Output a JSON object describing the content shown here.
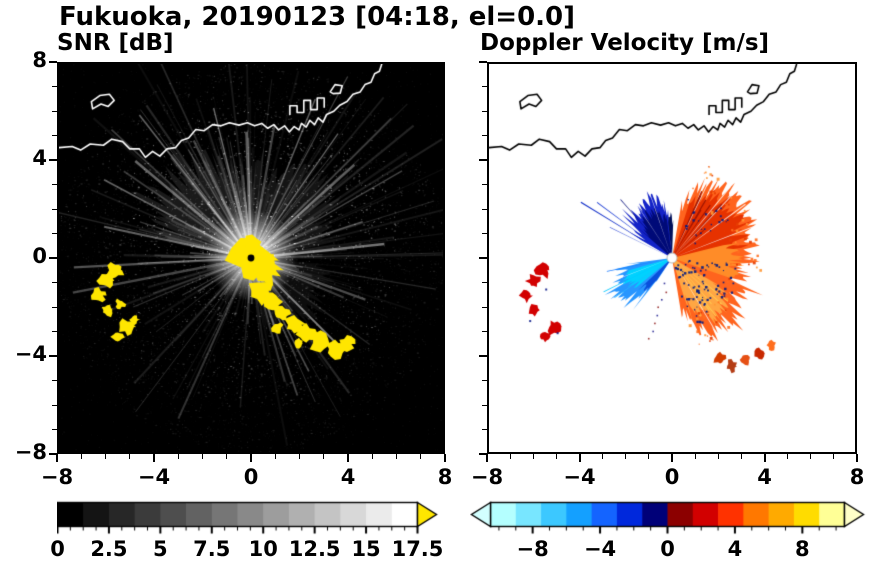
{
  "title": "Fukuoka, 20190123 [04:18, el=0.0]",
  "panels": [
    {
      "subtitle": "SNR [dB]"
    },
    {
      "subtitle": "Doppler Velocity [m/s]"
    }
  ],
  "chart_data": [
    {
      "type": "heatmap",
      "title": "SNR [dB]",
      "units": "dB",
      "xlim": [
        -8,
        8
      ],
      "ylim": [
        -8,
        8
      ],
      "x_ticks": [
        -8,
        -4,
        0,
        4,
        8
      ],
      "x_tick_labels": [
        "−8",
        "−4",
        "0",
        "4",
        "8"
      ],
      "y_ticks": [
        -8,
        -4,
        0,
        4,
        8
      ],
      "y_tick_labels": [
        "−8",
        "−4",
        "0",
        "4",
        "8"
      ],
      "minor_tick_step": 1,
      "background_color": "#000000",
      "radar_center": [
        0,
        0
      ],
      "colorbar": {
        "min": 0,
        "max": 17.5,
        "major_ticks": [
          0,
          2.5,
          5,
          7.5,
          10,
          12.5,
          15,
          17.5
        ],
        "tick_labels": [
          "0",
          "2.5",
          "5",
          "7.5",
          "10",
          "12.5",
          "15",
          "17.5"
        ],
        "minor_tick_step": 0.625,
        "segment_colors": [
          "#000000",
          "#141414",
          "#272727",
          "#3b3b3b",
          "#4e4e4e",
          "#626262",
          "#767676",
          "#898989",
          "#9d9d9d",
          "#b0b0b0",
          "#c4c4c4",
          "#d8d8d8",
          "#ebebeb",
          "#ffffff"
        ],
        "over_arrow_color": "#ffe600"
      },
      "render": {
        "core_blob_color": "#ffe600",
        "center_marker_color": "#000000",
        "echo_arc_bottom": [
          [
            0.45,
            -1.35,
            0.45
          ],
          [
            0.9,
            -1.8,
            0.35
          ],
          [
            1.3,
            -2.3,
            0.35
          ],
          [
            1.8,
            -2.75,
            0.4
          ],
          [
            2.3,
            -3.15,
            0.38
          ],
          [
            2.9,
            -3.5,
            0.42
          ],
          [
            3.5,
            -3.75,
            0.35
          ],
          [
            4.0,
            -3.55,
            0.3
          ],
          [
            1.1,
            -2.9,
            0.22
          ],
          [
            2.0,
            -3.5,
            0.2
          ]
        ],
        "echo_arc_left": [
          [
            -5.65,
            -0.5,
            0.33
          ],
          [
            -6.05,
            -0.95,
            0.3
          ],
          [
            -6.35,
            -1.55,
            0.27
          ],
          [
            -6.0,
            -2.15,
            0.24
          ],
          [
            -5.45,
            -1.9,
            0.2
          ],
          [
            -5.15,
            -2.85,
            0.3
          ],
          [
            -5.55,
            -3.25,
            0.24
          ],
          [
            -4.85,
            -2.55,
            0.18
          ]
        ]
      }
    },
    {
      "type": "heatmap",
      "title": "Doppler Velocity [m/s]",
      "units": "m/s",
      "xlim": [
        -8,
        8
      ],
      "ylim": [
        -8,
        8
      ],
      "x_ticks": [
        -8,
        -4,
        0,
        4,
        8
      ],
      "x_tick_labels": [
        "−8",
        "−4",
        "0",
        "4",
        "8"
      ],
      "y_ticks": [
        -8,
        -4,
        0,
        4,
        8
      ],
      "y_tick_labels": [
        "−8",
        "−4",
        "0",
        "4",
        "8"
      ],
      "minor_tick_step": 1,
      "background_color": "#ffffff",
      "radar_center": [
        0,
        0
      ],
      "colorbar": {
        "min": -10.5,
        "max": 10.5,
        "major_ticks": [
          -8,
          -4,
          0,
          4,
          8
        ],
        "tick_labels": [
          "−8",
          "−4",
          "0",
          "4",
          "8"
        ],
        "minor_tick_step": 1,
        "segment_colors": [
          "#b4ffff",
          "#78e6ff",
          "#3cc8ff",
          "#14a0ff",
          "#1464ff",
          "#0028dc",
          "#000078",
          "#8c0000",
          "#d20000",
          "#ff3200",
          "#ff7800",
          "#ffaa00",
          "#ffdc00",
          "#ffff96"
        ],
        "under_arrow_color": "#d2ffff",
        "over_arrow_color": "#ffffc8"
      },
      "render": {
        "center_marker_color": "#ffffff",
        "away_sector": {
          "radius_ctrl": [
            [
              -80,
              2.1
            ],
            [
              -62,
              3.5
            ],
            [
              -45,
              3.45
            ],
            [
              -25,
              3.0
            ],
            [
              -5,
              3.15
            ],
            [
              15,
              3.5
            ],
            [
              35,
              3.8
            ],
            [
              55,
              3.5
            ],
            [
              70,
              2.9
            ],
            [
              80,
              1.9
            ]
          ],
          "base_color": "#ff641e"
        },
        "toward_dark_sector": {
          "radius_ctrl": [
            [
              95,
              1.9
            ],
            [
              108,
              2.55
            ],
            [
              122,
              2.65
            ],
            [
              138,
              2.25
            ],
            [
              152,
              1.5
            ]
          ],
          "base_color": "#1423c8"
        },
        "toward_cyan_sector": {
          "radius_ctrl": [
            [
              187,
              1.7
            ],
            [
              199,
              2.45
            ],
            [
              213,
              2.55
            ],
            [
              226,
              2.15
            ],
            [
              235,
              1.4
            ]
          ],
          "base_color": "#2896ff"
        },
        "left_fragments": [
          [
            -5.65,
            -0.5,
            0.3
          ],
          [
            -6.05,
            -0.95,
            0.28
          ],
          [
            -6.35,
            -1.55,
            0.25
          ],
          [
            -6.0,
            -2.15,
            0.22
          ],
          [
            -5.15,
            -2.85,
            0.28
          ],
          [
            -5.55,
            -3.25,
            0.22
          ]
        ],
        "left_fragment_color": "#d20000",
        "bottom_fragments": [
          [
            2.1,
            -4.15,
            0.25
          ],
          [
            2.6,
            -4.45,
            0.22
          ],
          [
            3.2,
            -4.2,
            0.2
          ],
          [
            3.8,
            -3.95,
            0.22
          ],
          [
            4.35,
            -3.6,
            0.18
          ]
        ],
        "bottom_fragment_colors": [
          "#d23c00",
          "#b43c14",
          "#e65014",
          "#c82800",
          "#ff6e1e"
        ]
      }
    }
  ],
  "map": {
    "coastline": [
      [
        -8,
        4.55
      ],
      [
        -7.45,
        4.6
      ],
      [
        -7.1,
        4.45
      ],
      [
        -6.7,
        4.7
      ],
      [
        -6.15,
        4.65
      ],
      [
        -5.8,
        4.9
      ],
      [
        -5.35,
        4.8
      ],
      [
        -5.05,
        4.5
      ],
      [
        -4.65,
        4.5
      ],
      [
        -4.4,
        4.15
      ],
      [
        -4.1,
        4.4
      ],
      [
        -3.8,
        4.2
      ],
      [
        -3.5,
        4.5
      ],
      [
        -3.15,
        4.55
      ],
      [
        -2.9,
        4.85
      ],
      [
        -2.6,
        4.95
      ],
      [
        -2.3,
        5.3
      ],
      [
        -1.95,
        5.25
      ],
      [
        -1.6,
        5.5
      ],
      [
        -1.25,
        5.45
      ],
      [
        -0.9,
        5.58
      ],
      [
        -0.5,
        5.48
      ],
      [
        -0.15,
        5.58
      ],
      [
        0.15,
        5.45
      ],
      [
        0.45,
        5.55
      ],
      [
        0.7,
        5.35
      ],
      [
        0.95,
        5.5
      ],
      [
        1.15,
        5.28
      ],
      [
        1.4,
        5.45
      ],
      [
        1.6,
        5.2
      ],
      [
        1.8,
        5.42
      ],
      [
        2.0,
        5.28
      ],
      [
        2.1,
        5.55
      ],
      [
        2.3,
        5.4
      ],
      [
        2.45,
        5.68
      ],
      [
        2.65,
        5.5
      ],
      [
        2.8,
        5.78
      ],
      [
        3.0,
        5.6
      ],
      [
        3.15,
        5.92
      ],
      [
        3.45,
        6.05
      ],
      [
        3.7,
        6.3
      ],
      [
        4.0,
        6.45
      ],
      [
        4.25,
        6.75
      ],
      [
        4.55,
        6.85
      ],
      [
        4.75,
        7.15
      ],
      [
        5.0,
        7.25
      ],
      [
        5.15,
        7.6
      ],
      [
        5.35,
        7.7
      ],
      [
        5.45,
        8.0
      ]
    ],
    "island": [
      [
        -6.6,
        6.15
      ],
      [
        -6.25,
        6.35
      ],
      [
        -5.95,
        6.25
      ],
      [
        -5.7,
        6.5
      ],
      [
        -5.9,
        6.75
      ],
      [
        -6.3,
        6.7
      ],
      [
        -6.65,
        6.45
      ]
    ],
    "port": [
      [
        1.62,
        5.9
      ],
      [
        1.62,
        6.28
      ],
      [
        1.92,
        6.28
      ],
      [
        1.92,
        6.0
      ],
      [
        2.2,
        6.0
      ],
      [
        2.2,
        6.5
      ],
      [
        2.48,
        6.5
      ],
      [
        2.48,
        6.12
      ],
      [
        2.76,
        6.12
      ],
      [
        2.76,
        6.6
      ],
      [
        3.05,
        6.6
      ],
      [
        3.05,
        6.2
      ]
    ],
    "pier": [
      [
        3.3,
        6.85
      ],
      [
        3.5,
        7.15
      ],
      [
        3.8,
        7.1
      ],
      [
        3.72,
        6.8
      ],
      [
        3.42,
        6.78
      ]
    ]
  }
}
